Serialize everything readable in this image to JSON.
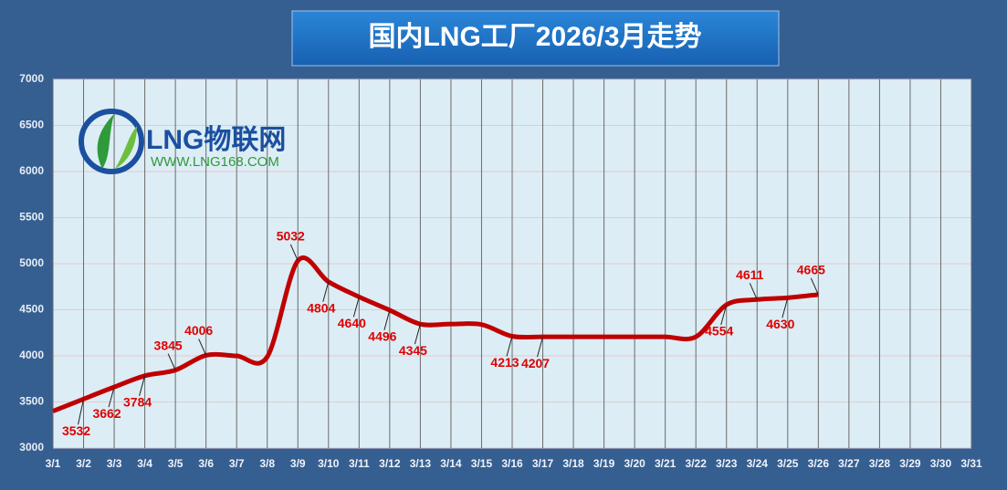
{
  "chart_data": {
    "type": "line",
    "title": "国内LNG工厂2026/3月走势",
    "logo": {
      "name": "LNG物联网",
      "url": "WWW.LNG168.COM"
    },
    "categories": [
      "3/1",
      "3/2",
      "3/3",
      "3/4",
      "3/5",
      "3/6",
      "3/7",
      "3/8",
      "3/9",
      "3/10",
      "3/11",
      "3/12",
      "3/13",
      "3/14",
      "3/15",
      "3/16",
      "3/17",
      "3/18",
      "3/19",
      "3/20",
      "3/21",
      "3/22",
      "3/23",
      "3/24",
      "3/25",
      "3/26",
      "3/27",
      "3/28",
      "3/29",
      "3/30",
      "3/31"
    ],
    "series": [
      {
        "color": "#c00000",
        "values": [
          3400,
          3532,
          3662,
          3784,
          3845,
          4006,
          4000,
          3990,
          5032,
          4804,
          4640,
          4496,
          4345,
          4345,
          4340,
          4213,
          4207,
          4207,
          4207,
          4207,
          4207,
          4207,
          4554,
          4611,
          4630,
          4665,
          null,
          null,
          null,
          null,
          null
        ],
        "value_labels": [
          null,
          "3532",
          "3662",
          "3784",
          "3845",
          "4006",
          null,
          null,
          "5032",
          "4804",
          "4640",
          "4496",
          "4345",
          null,
          null,
          "4213",
          "4207",
          null,
          null,
          null,
          null,
          null,
          "4554",
          "4611",
          "4630",
          "4665",
          null,
          null,
          null,
          null,
          null
        ]
      }
    ],
    "ylim": [
      3000,
      7000
    ],
    "yticks": [
      3000,
      3500,
      4000,
      4500,
      5000,
      5500,
      6000,
      6500,
      7000
    ],
    "grid": true
  }
}
